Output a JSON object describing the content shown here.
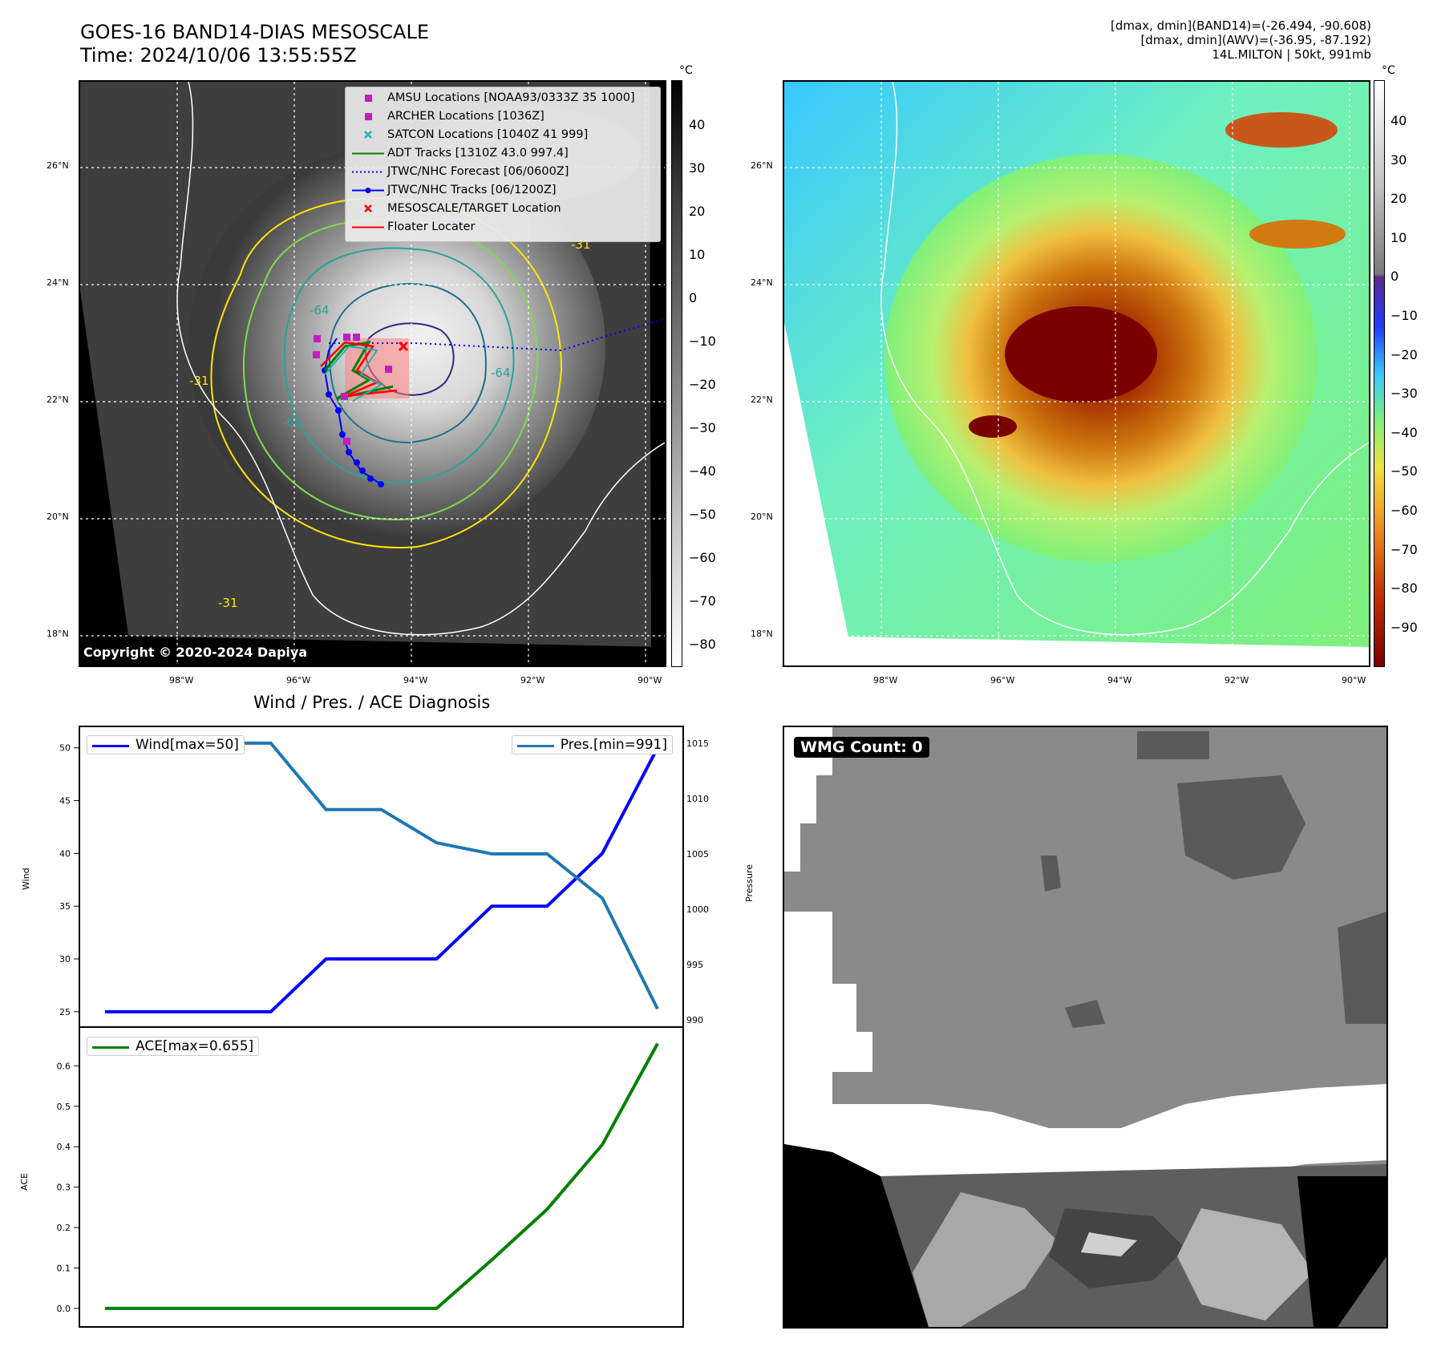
{
  "header": {
    "title_line1": "GOES-16 BAND14-DIAS MESOSCALE",
    "title_line2": "Time: 2024/10/06 13:55:55Z",
    "info_line1": "[dmax, dmin](BAND14)=(-26.494, -90.608)",
    "info_line2": "[dmax, dmin](AWV)=(-36.95, -87.192)",
    "info_line3": "14L.MILTON | 50kt, 991mb"
  },
  "map_left": {
    "lat_labels": [
      "26°N",
      "24°N",
      "22°N",
      "20°N",
      "18°N"
    ],
    "lon_labels": [
      "98°W",
      "96°W",
      "94°W",
      "92°W",
      "90°W"
    ],
    "copyright": "Copyright © 2020-2024 Dapiya",
    "legend": [
      {
        "label": "AMSU Locations [NOAA93/0333Z 35 1000]",
        "symbol": "square",
        "color": "#c21fc2"
      },
      {
        "label": "ARCHER Locations [1036Z]",
        "symbol": "square",
        "color": "#c21fc2"
      },
      {
        "label": "SATCON Locations [1040Z 41 999]",
        "symbol": "x",
        "color": "#19b5b5"
      },
      {
        "label": "ADT Tracks [1310Z 43.0 997.4]",
        "symbol": "line",
        "color": "#008000"
      },
      {
        "label": "JTWC/NHC Forecast [06/0600Z]",
        "symbol": "dotted",
        "color": "#0000ff"
      },
      {
        "label": "JTWC/NHC Tracks [06/1200Z]",
        "symbol": "line-dot",
        "color": "#0000ff"
      },
      {
        "label": "MESOSCALE/TARGET Location",
        "symbol": "x",
        "color": "#ff0000"
      },
      {
        "label": "Floater Locater",
        "symbol": "line",
        "color": "#ff0000"
      }
    ],
    "contour_labels": [
      "-31",
      "-31",
      "-31",
      "-64",
      "-64",
      "-64"
    ],
    "colorbar": {
      "unit": "°C",
      "ticks": [
        "40",
        "30",
        "20",
        "10",
        "0",
        "−10",
        "−20",
        "−30",
        "−40",
        "−50",
        "−60",
        "−70",
        "−80"
      ]
    }
  },
  "map_right": {
    "lat_labels": [
      "26°N",
      "24°N",
      "22°N",
      "20°N",
      "18°N"
    ],
    "lon_labels": [
      "98°W",
      "96°W",
      "94°W",
      "92°W",
      "90°W"
    ],
    "colorbar": {
      "unit": "°C",
      "ticks": [
        "40",
        "30",
        "20",
        "10",
        "0",
        "−10",
        "−20",
        "−30",
        "−40",
        "−50",
        "−60",
        "−70",
        "−80",
        "−90"
      ]
    }
  },
  "diagnosis": {
    "title": "Wind / Pres. / ACE Diagnosis",
    "wind_ylabel": "Wind",
    "pres_ylabel": "Pressure",
    "ace_ylabel": "ACE",
    "wind_legend": "Wind[max=50]",
    "pres_legend": "Pres.[min=991]",
    "ace_legend": "ACE[max=0.655]",
    "wind_ticks": [
      "50",
      "45",
      "40",
      "35",
      "30",
      "25"
    ],
    "pres_ticks": [
      "1015",
      "1010",
      "1005",
      "1000",
      "995",
      "990"
    ],
    "ace_ticks": [
      "0.6",
      "0.5",
      "0.4",
      "0.3",
      "0.2",
      "0.1",
      "0.0"
    ]
  },
  "wmg": {
    "label": "WMG Count: 0"
  },
  "colors": {
    "wind": "#0000ff",
    "pressure": "#1f77b4",
    "ace": "#008000"
  },
  "chart_data": [
    {
      "type": "line",
      "title": "Wind / Pres. / ACE Diagnosis",
      "ylabel": "Wind",
      "y2label": "Pressure",
      "ylim": [
        24,
        51.5
      ],
      "y2lim": [
        989.8,
        1016
      ],
      "series": [
        {
          "name": "Wind[max=50]",
          "axis": "left",
          "values": [
            25,
            25,
            25,
            25,
            30,
            30,
            30,
            35,
            35,
            40,
            50
          ]
        },
        {
          "name": "Pres.[min=991]",
          "axis": "right",
          "values": [
            1015,
            1015,
            1015,
            1015,
            1009,
            1009,
            1006,
            1005,
            1005,
            1001,
            991
          ]
        }
      ]
    },
    {
      "type": "line",
      "ylabel": "ACE",
      "ylim": [
        -0.03,
        0.68
      ],
      "series": [
        {
          "name": "ACE[max=0.655]",
          "values": [
            0.0,
            0.0,
            0.0,
            0.0,
            0.0,
            0.0,
            0.0,
            0.12,
            0.245,
            0.405,
            0.655
          ]
        }
      ]
    }
  ]
}
